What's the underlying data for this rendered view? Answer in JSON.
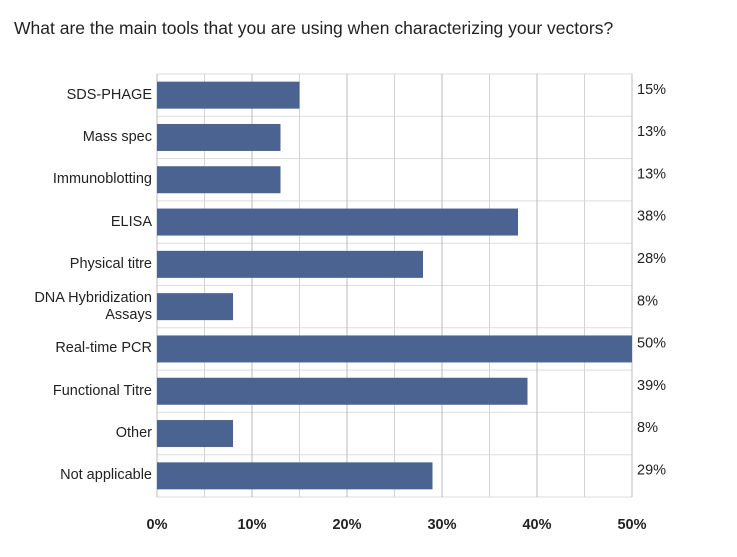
{
  "chart_data": {
    "type": "bar",
    "orientation": "horizontal",
    "title": "What are the main tools that you are using when characterizing your vectors?",
    "categories": [
      "SDS-PHAGE",
      "Mass spec",
      "Immunoblotting",
      "ELISA",
      "Physical titre",
      "DNA Hybridization Assays",
      "Real-time PCR",
      "Functional Titre",
      "Other",
      "Not applicable"
    ],
    "values": [
      15,
      13,
      13,
      38,
      28,
      8,
      50,
      39,
      8,
      29
    ],
    "value_labels": [
      "15%",
      "13%",
      "13%",
      "38%",
      "28%",
      "8%",
      "50%",
      "39%",
      "8%",
      "29%"
    ],
    "color": "#4b6390",
    "xlim": [
      0,
      50
    ],
    "xticks": [
      {
        "value": 0,
        "label": "0%"
      },
      {
        "value": 10,
        "label": "10%"
      },
      {
        "value": 20,
        "label": "20%"
      },
      {
        "value": 30,
        "label": "30%"
      },
      {
        "value": 40,
        "label": "40%"
      },
      {
        "value": 50,
        "label": "50%"
      }
    ],
    "minor_xticks": [
      5,
      15,
      25,
      35,
      45
    ],
    "grid": true
  }
}
